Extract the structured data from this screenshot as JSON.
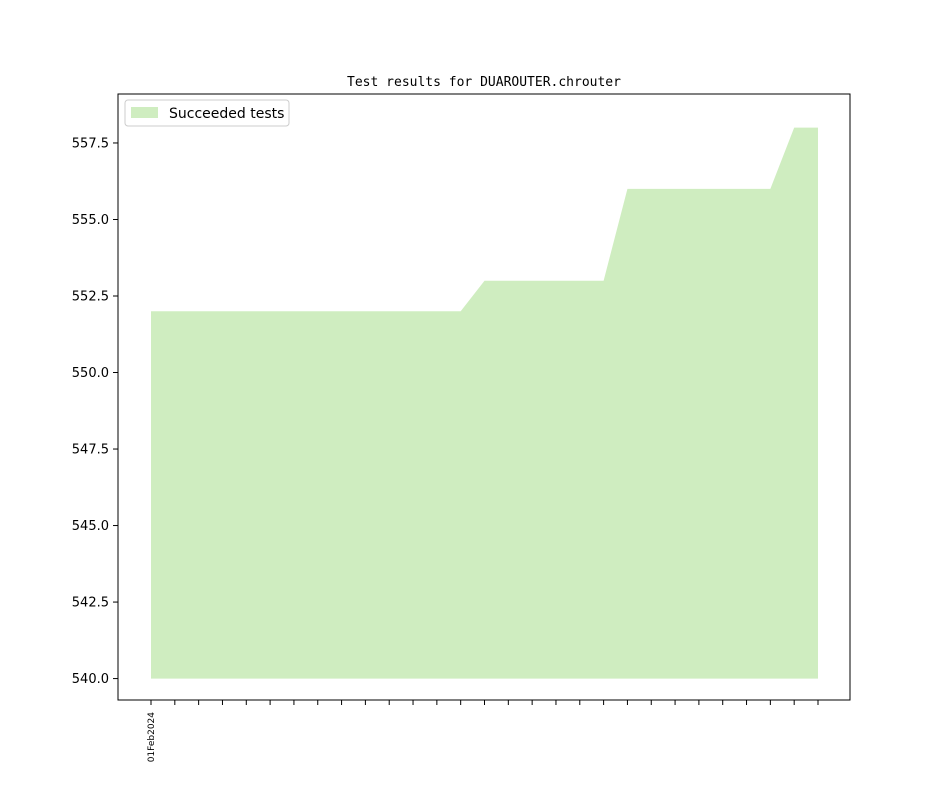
{
  "chart_data": {
    "type": "area",
    "title": "Test results for DUAROUTER.chrouter",
    "xlabel": "",
    "ylabel": "",
    "ylim": [
      539.3,
      559.1
    ],
    "yticks": [
      "540.0",
      "542.5",
      "545.0",
      "547.5",
      "550.0",
      "552.5",
      "555.0",
      "557.5"
    ],
    "x_tick_count": 29,
    "x_tick_labels": [
      {
        "index": 0,
        "label": "01Feb2024"
      }
    ],
    "baseline": 540,
    "legend": {
      "position": "top-left",
      "entries": [
        "Succeeded tests"
      ]
    },
    "series": [
      {
        "name": "Succeeded tests",
        "color": "#cfedc0",
        "values": [
          552,
          552,
          552,
          552,
          552,
          552,
          552,
          552,
          552,
          552,
          552,
          552,
          552,
          552,
          553,
          553,
          553,
          553,
          553,
          553,
          556,
          556,
          556,
          556,
          556,
          556,
          556,
          558,
          558
        ]
      }
    ],
    "grid": false
  }
}
